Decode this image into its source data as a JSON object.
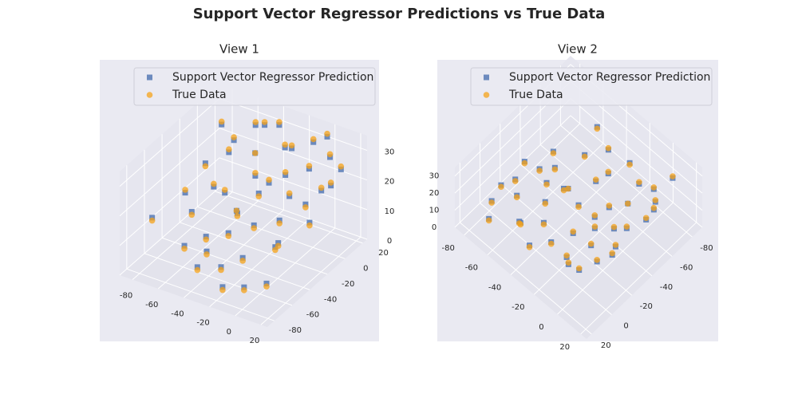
{
  "chart_data": {
    "type": "scatter3d",
    "title": "Support Vector Regressor Predictions vs True Data",
    "views": [
      "View 1",
      "View 2"
    ],
    "xlim": [
      -90,
      25
    ],
    "xticks": [
      -80,
      -60,
      -40,
      -20,
      0,
      20
    ],
    "ylim": [
      -88,
      25
    ],
    "yticks": [
      -80,
      -60,
      -40,
      -20,
      0,
      20
    ],
    "zlim": [
      0,
      35
    ],
    "zticks": [
      0,
      10,
      20,
      30
    ],
    "grid": true,
    "legend": "upper right",
    "series": [
      {
        "name": "Support Vector Regressor Prediction",
        "color": "#4c72b0",
        "marker": "square",
        "x": [
          -78,
          -70,
          -65,
          -60,
          -55,
          -52,
          -48,
          -45,
          -42,
          -40,
          -38,
          -35,
          -32,
          -30,
          -28,
          -25,
          -22,
          -20,
          -18,
          -15,
          -12,
          -10,
          -8,
          -5,
          -2,
          0,
          3,
          5,
          8,
          10,
          12,
          15,
          18,
          -72,
          -62,
          -50,
          -36,
          -26,
          -14,
          -4,
          6,
          14,
          -84,
          -58,
          -30
        ],
        "y": [
          10,
          -20,
          5,
          -50,
          15,
          -70,
          -30,
          0,
          -60,
          20,
          -10,
          -80,
          -40,
          12,
          -55,
          -25,
          8,
          -75,
          -5,
          -45,
          18,
          -65,
          -15,
          3,
          -35,
          -78,
          15,
          -50,
          -20,
          -5,
          -70,
          10,
          -30,
          -40,
          -5,
          18,
          -68,
          -12,
          -82,
          22,
          -48,
          0,
          -60,
          -28,
          -42
        ],
        "z": [
          27,
          23,
          25,
          16,
          29,
          11,
          19,
          25,
          13,
          30,
          21,
          9,
          18,
          26,
          15,
          21,
          28,
          10,
          23,
          17,
          29,
          12,
          20,
          25,
          18,
          7,
          27,
          14,
          21,
          22,
          8,
          26,
          19,
          18,
          24,
          29,
          11,
          21,
          6,
          31,
          15,
          23,
          13,
          19,
          18
        ]
      },
      {
        "name": "True Data",
        "color": "#f5a31a",
        "marker": "circle",
        "x": [
          -78,
          -70,
          -65,
          -60,
          -55,
          -52,
          -48,
          -45,
          -42,
          -40,
          -38,
          -35,
          -32,
          -30,
          -28,
          -25,
          -22,
          -20,
          -18,
          -15,
          -12,
          -10,
          -8,
          -5,
          -2,
          0,
          3,
          5,
          8,
          10,
          12,
          15,
          18,
          -72,
          -62,
          -50,
          -36,
          -26,
          -14,
          -4,
          6,
          14,
          -84,
          -58,
          -30
        ],
        "y": [
          10,
          -20,
          5,
          -50,
          15,
          -70,
          -30,
          0,
          -60,
          20,
          -10,
          -80,
          -40,
          12,
          -55,
          -25,
          8,
          -75,
          -5,
          -45,
          18,
          -65,
          -15,
          3,
          -35,
          -78,
          15,
          -50,
          -20,
          -5,
          -70,
          10,
          -30,
          -40,
          -5,
          18,
          -68,
          -12,
          -82,
          22,
          -48,
          0,
          -60,
          -28,
          -42
        ],
        "z": [
          28,
          22,
          26,
          15,
          30,
          10,
          20,
          25,
          12,
          31,
          22,
          8,
          18,
          27,
          14,
          20,
          29,
          9,
          24,
          16,
          30,
          11,
          21,
          26,
          17,
          6,
          28,
          13,
          20,
          23,
          7,
          27,
          18,
          19,
          25,
          30,
          10,
          22,
          5,
          32,
          14,
          24,
          12,
          20,
          17
        ]
      }
    ]
  }
}
